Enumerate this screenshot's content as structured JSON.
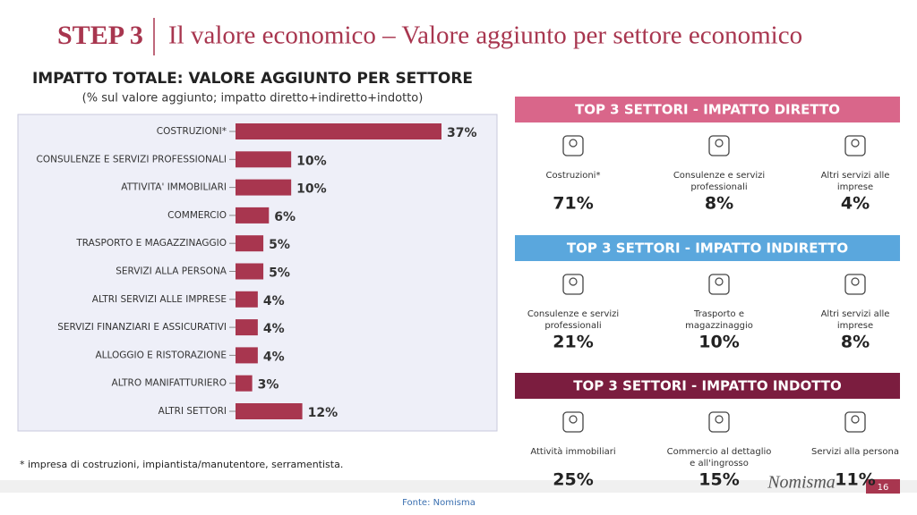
{
  "header": {
    "step": "STEP 3",
    "title": "Il valore economico – Valore aggiunto per settore economico"
  },
  "chart_data": {
    "type": "bar",
    "orientation": "horizontal",
    "title": "IMPATTO TOTALE: VALORE AGGIUNTO PER SETTORE",
    "subtitle": "(% sul valore aggiunto; impatto diretto+indiretto+indotto)",
    "categories": [
      "COSTRUZIONI*",
      "CONSULENZE E SERVIZI PROFESSIONALI",
      "ATTIVITA' IMMOBILIARI",
      "COMMERCIO",
      "TRASPORTO E MAGAZZINAGGIO",
      "SERVIZI ALLA PERSONA",
      "ALTRI SERVIZI ALLE IMPRESE",
      "SERVIZI FINANZIARI E ASSICURATIVI",
      "ALLOGGIO E RISTORAZIONE",
      "ALTRO MANIFATTURIERO",
      "ALTRI SETTORI"
    ],
    "values": [
      37,
      10,
      10,
      6,
      5,
      5,
      4,
      4,
      4,
      3,
      12
    ],
    "value_labels": [
      "37%",
      "10%",
      "10%",
      "6%",
      "5%",
      "5%",
      "4%",
      "4%",
      "4%",
      "3%",
      "12%"
    ],
    "color": "#a8364f"
  },
  "footnote": "* impresa di costruzioni, impiantista/manutentore, serramentista.",
  "panels": [
    {
      "title": "TOP 3 SETTORI - IMPATTO DIRETTO",
      "color": "#d9668a",
      "items": [
        {
          "label": "Costruzioni*",
          "value": "71%"
        },
        {
          "label": "Consulenze e servizi professionali",
          "value": "8%"
        },
        {
          "label": "Altri servizi alle imprese",
          "value": "4%"
        }
      ]
    },
    {
      "title": "TOP 3 SETTORI - IMPATTO INDIRETTO",
      "color": "#5aa7dd",
      "items": [
        {
          "label": "Consulenze e servizi professionali",
          "value": "21%"
        },
        {
          "label": "Trasporto e magazzinaggio",
          "value": "10%"
        },
        {
          "label": "Altri servizi alle imprese",
          "value": "8%"
        }
      ]
    },
    {
      "title": "TOP 3 SETTORI - IMPATTO INDOTTO",
      "color": "#7b1d3f",
      "items": [
        {
          "label": "Attività immobiliari",
          "value": "25%"
        },
        {
          "label": "Commercio al dettaglio e all'ingrosso",
          "value": "15%"
        },
        {
          "label": "Servizi alla persona",
          "value": "11%"
        }
      ]
    }
  ],
  "logo": "Nomisma",
  "page_number": "16",
  "source": "Fonte: Nomisma"
}
